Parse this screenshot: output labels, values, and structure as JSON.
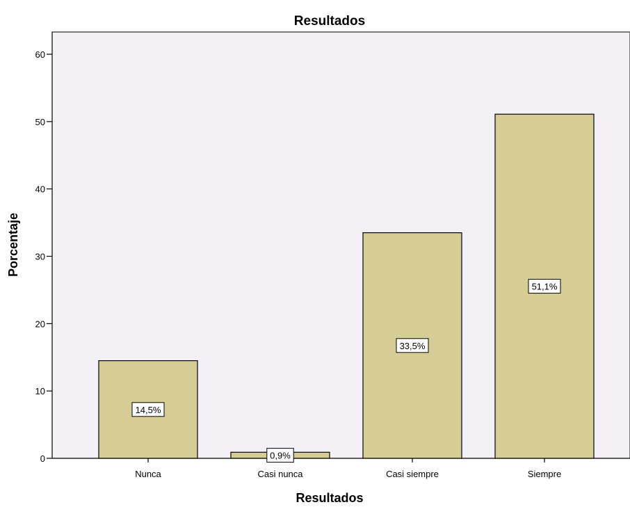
{
  "chart_data": {
    "type": "bar",
    "title": "Resultados",
    "xlabel": "Resultados",
    "ylabel": "Porcentaje",
    "categories": [
      "Nunca",
      "Casi nunca",
      "Casi siempre",
      "Siempre"
    ],
    "values": [
      14.5,
      0.9,
      33.5,
      51.1
    ],
    "data_labels": [
      "14,5%",
      "0,9%",
      "33,5%",
      "51,1%"
    ],
    "ylim": [
      0,
      60
    ],
    "y_ticks": [
      0,
      10,
      20,
      30,
      40,
      50,
      60
    ],
    "grid": false,
    "legend": "none",
    "colors": {
      "plot_background": "#F4F1F6",
      "bar_fill": "#D6CC96",
      "bar_stroke": "#000000"
    }
  }
}
